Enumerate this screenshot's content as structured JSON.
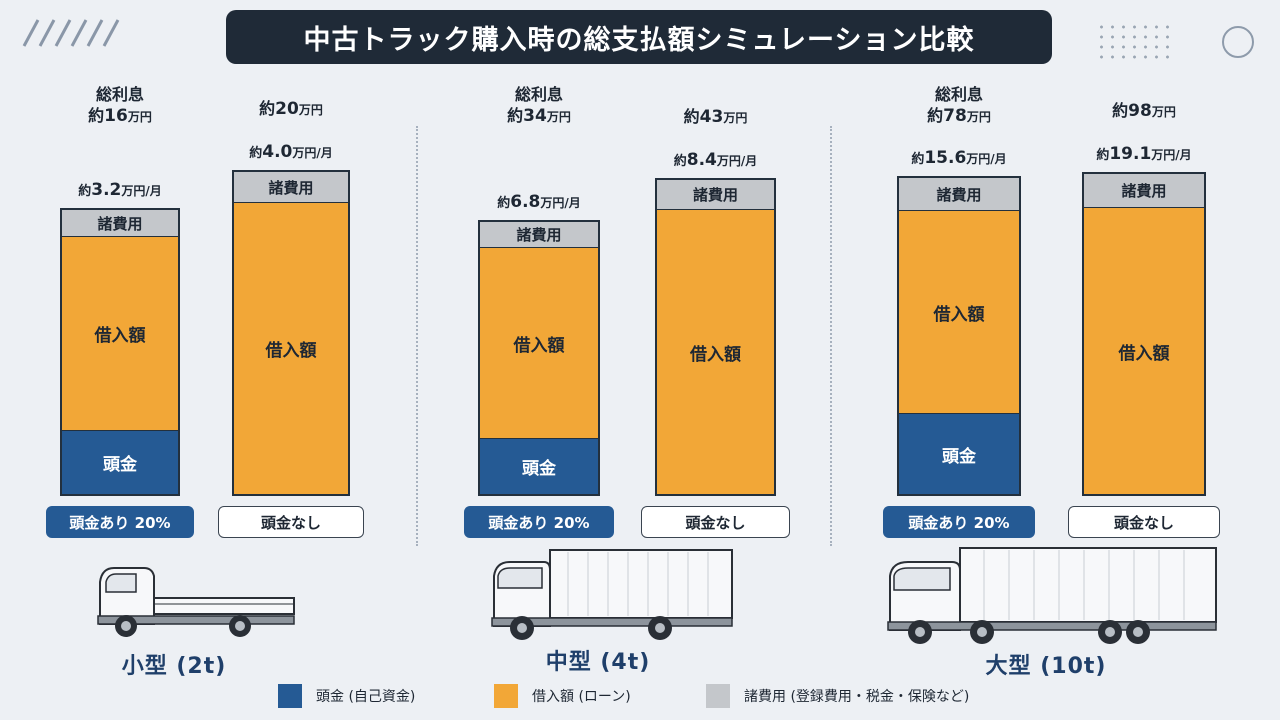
{
  "title": "中古トラック購入時の総支払額シミュレーション比較",
  "colors": {
    "down": "#255a94",
    "loan": "#f2a737",
    "fees": "#c4c7cb"
  },
  "segment_labels": {
    "fees": "諸費用",
    "loan": "借入額",
    "down": "頭金"
  },
  "interest_label": "総利息",
  "chart_data": {
    "type": "bar",
    "stacked": true,
    "categories": [
      "小型 (2t)",
      "中型 (4t)",
      "大型 (10t)"
    ],
    "groups": [
      {
        "category": "小型 (2t)",
        "interest_value": "約16万円",
        "bars": [
          {
            "label": "頭金あり 20%",
            "monthly": "約3.2万円/月",
            "down": 0.23,
            "loan": 0.67,
            "fees": 0.1
          },
          {
            "label": "頭金なし",
            "total": "約20万円",
            "monthly": "約4.0万円/月",
            "down": 0,
            "loan": 0.9,
            "fees": 0.1
          }
        ]
      },
      {
        "category": "中型 (4t)",
        "interest_value": "約34万円",
        "bars": [
          {
            "label": "頭金あり 20%",
            "monthly": "約6.8万円/月",
            "down": 0.21,
            "loan": 0.69,
            "fees": 0.1
          },
          {
            "label": "頭金なし",
            "total": "約43万円",
            "monthly": "約8.4万円/月",
            "down": 0,
            "loan": 0.9,
            "fees": 0.1
          }
        ]
      },
      {
        "category": "大型 (10t)",
        "interest_value": "約78万円",
        "bars": [
          {
            "label": "頭金あり 20%",
            "monthly": "約15.6万円/月",
            "down": 0.26,
            "loan": 0.63,
            "fees": 0.11
          },
          {
            "label": "頭金なし",
            "total": "約98万円",
            "monthly": "約19.1万円/月",
            "down": 0,
            "loan": 0.89,
            "fees": 0.11
          }
        ]
      }
    ],
    "legend": [
      {
        "key": "down",
        "label": "頭金 (自己資金)"
      },
      {
        "key": "loan",
        "label": "借入額 (ローン)"
      },
      {
        "key": "fees",
        "label": "諸費用 (登録費用・税金・保険など)"
      }
    ]
  }
}
